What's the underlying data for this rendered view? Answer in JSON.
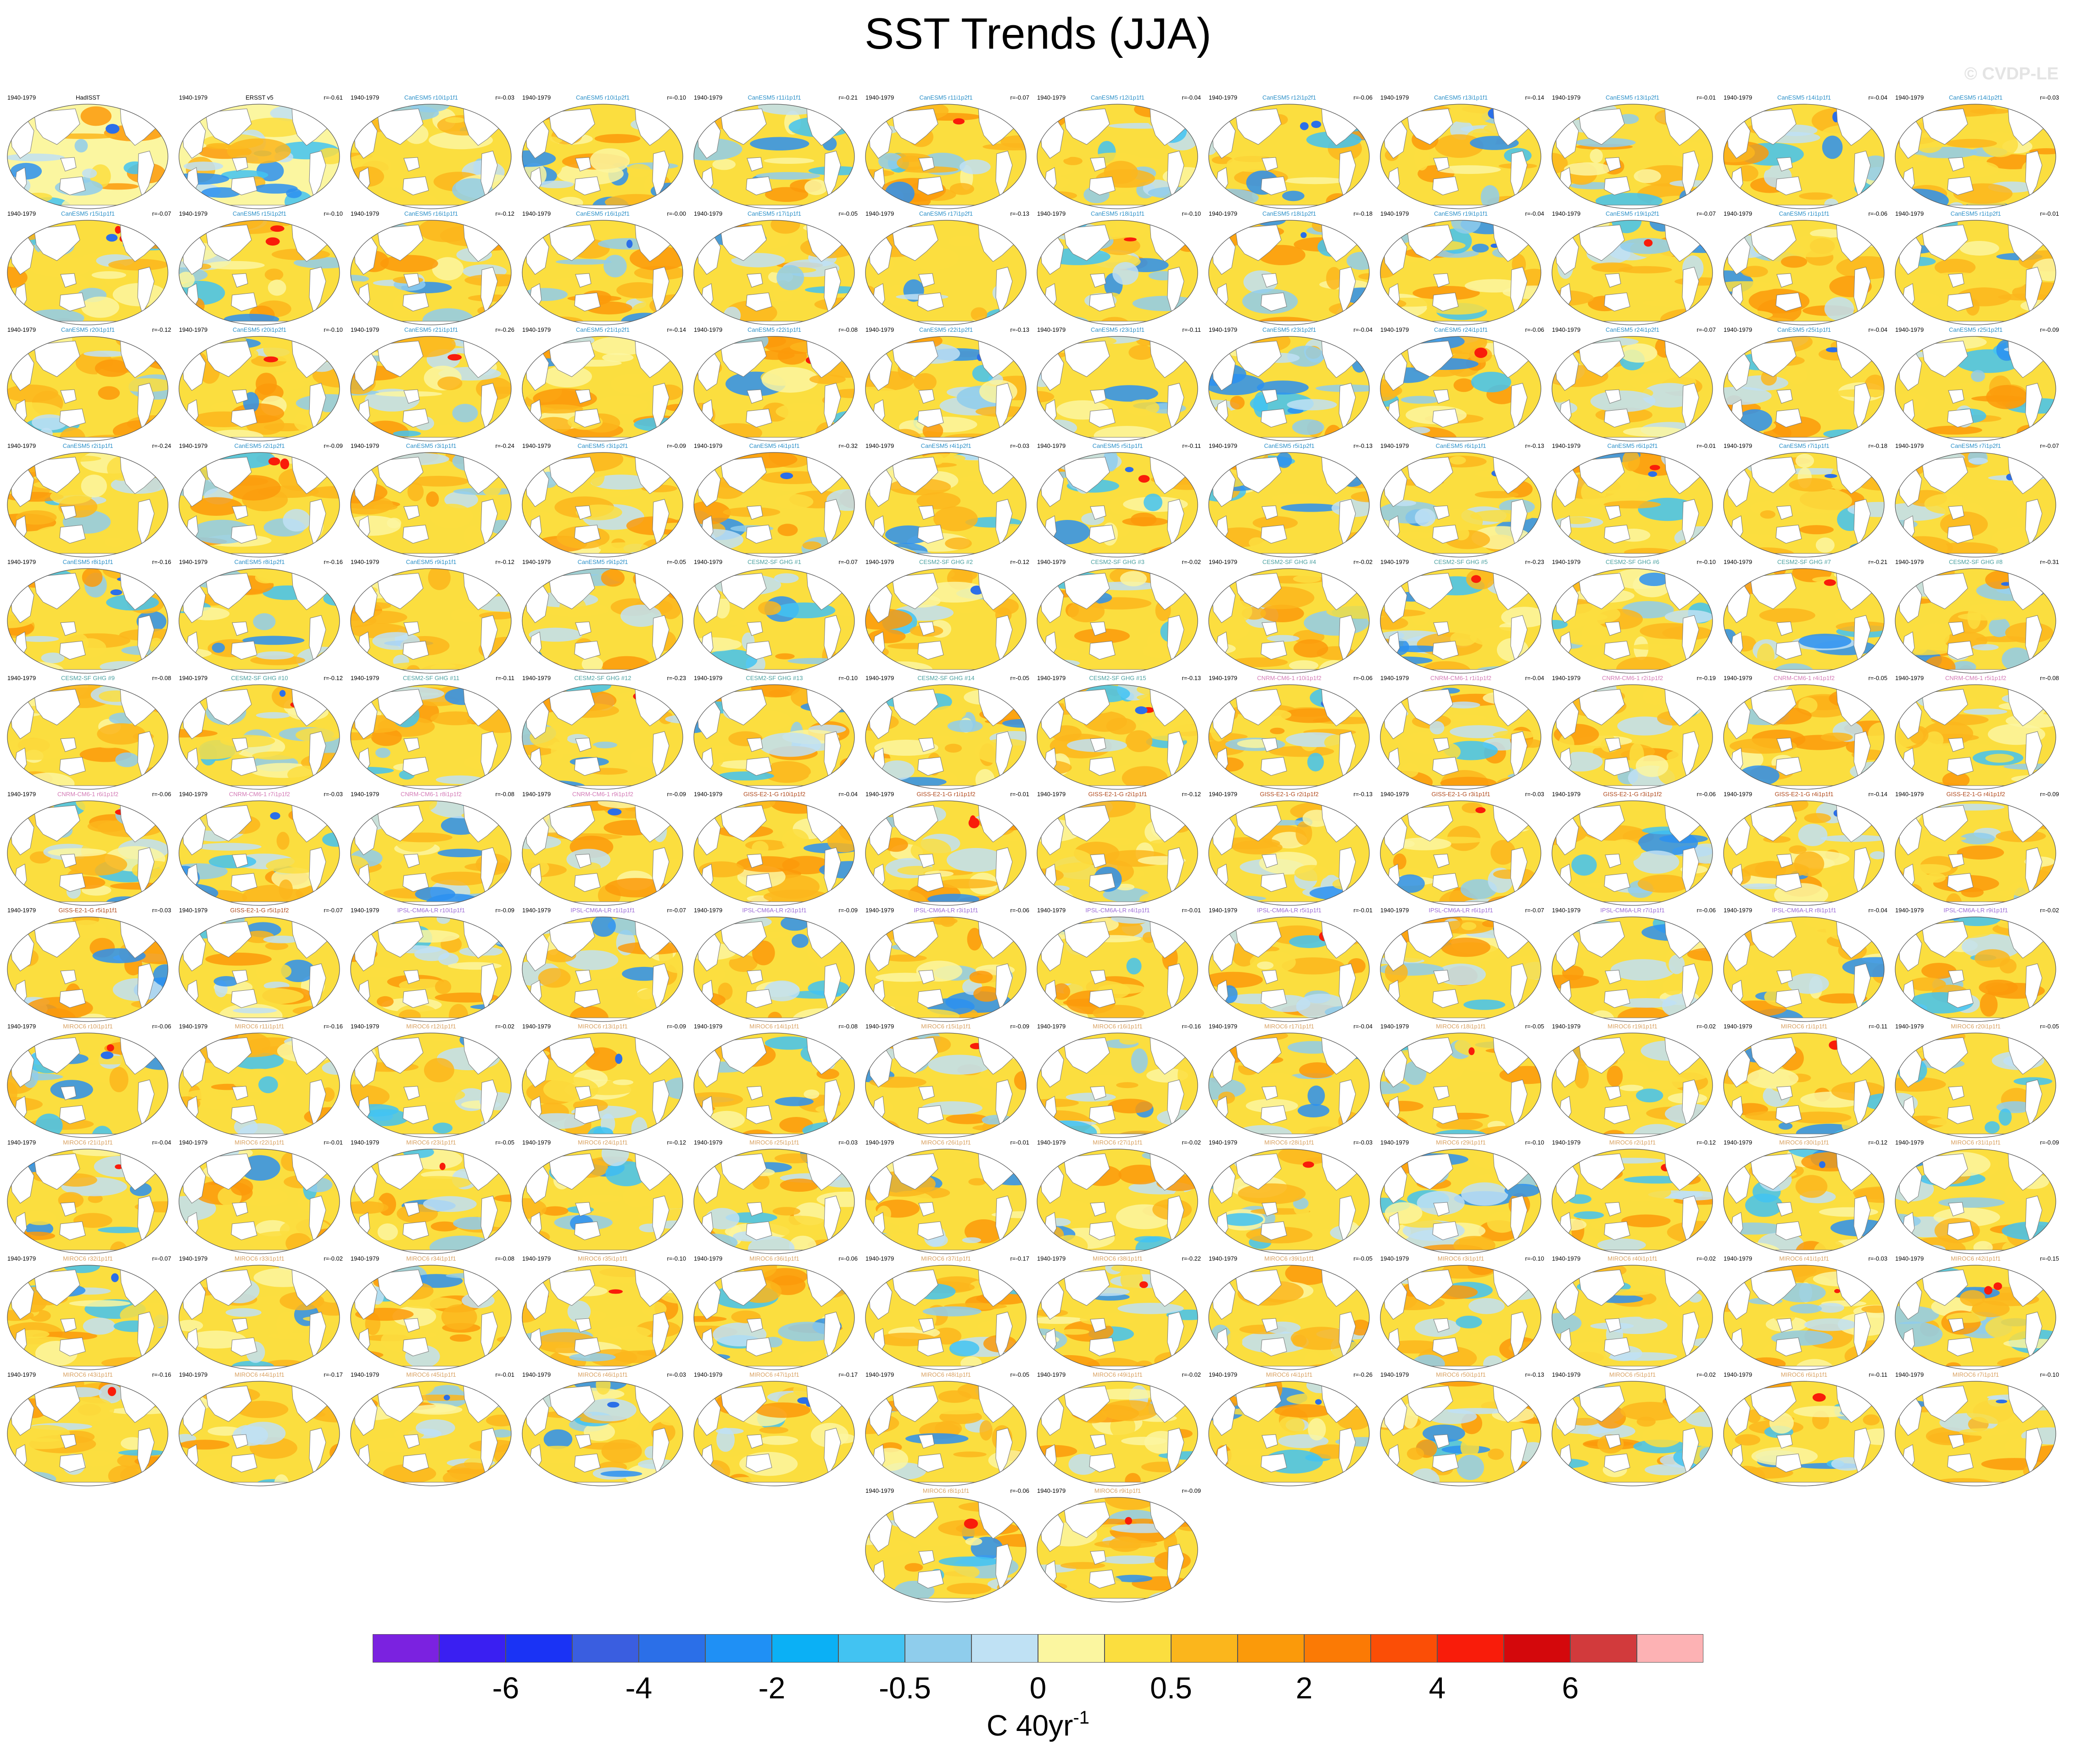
{
  "title": "SST Trends (JJA)",
  "watermark": "© CVDP-LE",
  "period": "1940-1979",
  "model_colors": {
    "obs": "#000000",
    "CanESM5": "#2a8fc8",
    "CESM2-SF GHG": "#4aa0a0",
    "CNRM-CM6-1": "#d37ab6",
    "GISS-E2-1-G": "#b04a1e",
    "IPSL-CM6A-LR": "#9a6ad6",
    "MIROC6": "#d8a060"
  },
  "panels": [
    {
      "name": "HadISST",
      "model": "obs",
      "r": ""
    },
    {
      "name": "ERSST v5",
      "model": "obs",
      "r": "r=-0.61"
    },
    {
      "name": "CanESM5 r10i1p1f1",
      "model": "CanESM5",
      "r": "r=-0.03"
    },
    {
      "name": "CanESM5 r10i1p2f1",
      "model": "CanESM5",
      "r": "r=-0.10"
    },
    {
      "name": "CanESM5 r11i1p1f1",
      "model": "CanESM5",
      "r": "r=-0.21"
    },
    {
      "name": "CanESM5 r11i1p2f1",
      "model": "CanESM5",
      "r": "r=-0.07"
    },
    {
      "name": "CanESM5 r12i1p1f1",
      "model": "CanESM5",
      "r": "r=-0.04"
    },
    {
      "name": "CanESM5 r12i1p2f1",
      "model": "CanESM5",
      "r": "r=-0.06"
    },
    {
      "name": "CanESM5 r13i1p1f1",
      "model": "CanESM5",
      "r": "r=-0.14"
    },
    {
      "name": "CanESM5 r13i1p2f1",
      "model": "CanESM5",
      "r": "r=-0.01"
    },
    {
      "name": "CanESM5 r14i1p1f1",
      "model": "CanESM5",
      "r": "r=-0.04"
    },
    {
      "name": "CanESM5 r14i1p2f1",
      "model": "CanESM5",
      "r": "r=-0.03"
    },
    {
      "name": "CanESM5 r15i1p1f1",
      "model": "CanESM5",
      "r": "r=-0.07"
    },
    {
      "name": "CanESM5 r15i1p2f1",
      "model": "CanESM5",
      "r": "r=-0.10"
    },
    {
      "name": "CanESM5 r16i1p1f1",
      "model": "CanESM5",
      "r": "r=-0.12"
    },
    {
      "name": "CanESM5 r16i1p2f1",
      "model": "CanESM5",
      "r": "r=-0.00"
    },
    {
      "name": "CanESM5 r17i1p1f1",
      "model": "CanESM5",
      "r": "r=-0.05"
    },
    {
      "name": "CanESM5 r17i1p2f1",
      "model": "CanESM5",
      "r": "r=-0.13"
    },
    {
      "name": "CanESM5 r18i1p1f1",
      "model": "CanESM5",
      "r": "r=-0.10"
    },
    {
      "name": "CanESM5 r18i1p2f1",
      "model": "CanESM5",
      "r": "r=-0.18"
    },
    {
      "name": "CanESM5 r19i1p1f1",
      "model": "CanESM5",
      "r": "r=-0.04"
    },
    {
      "name": "CanESM5 r19i1p2f1",
      "model": "CanESM5",
      "r": "r=-0.07"
    },
    {
      "name": "CanESM5 r1i1p1f1",
      "model": "CanESM5",
      "r": "r=-0.06"
    },
    {
      "name": "CanESM5 r1i1p2f1",
      "model": "CanESM5",
      "r": "r=-0.01"
    },
    {
      "name": "CanESM5 r20i1p1f1",
      "model": "CanESM5",
      "r": "r=-0.12"
    },
    {
      "name": "CanESM5 r20i1p2f1",
      "model": "CanESM5",
      "r": "r=-0.10"
    },
    {
      "name": "CanESM5 r21i1p1f1",
      "model": "CanESM5",
      "r": "r=-0.26"
    },
    {
      "name": "CanESM5 r21i1p2f1",
      "model": "CanESM5",
      "r": "r=-0.14"
    },
    {
      "name": "CanESM5 r22i1p1f1",
      "model": "CanESM5",
      "r": "r=-0.08"
    },
    {
      "name": "CanESM5 r22i1p2f1",
      "model": "CanESM5",
      "r": "r=-0.13"
    },
    {
      "name": "CanESM5 r23i1p1f1",
      "model": "CanESM5",
      "r": "r=-0.11"
    },
    {
      "name": "CanESM5 r23i1p2f1",
      "model": "CanESM5",
      "r": "r=-0.04"
    },
    {
      "name": "CanESM5 r24i1p1f1",
      "model": "CanESM5",
      "r": "r=-0.06"
    },
    {
      "name": "CanESM5 r24i1p2f1",
      "model": "CanESM5",
      "r": "r=-0.07"
    },
    {
      "name": "CanESM5 r25i1p1f1",
      "model": "CanESM5",
      "r": "r=-0.04"
    },
    {
      "name": "CanESM5 r25i1p2f1",
      "model": "CanESM5",
      "r": "r=-0.09"
    },
    {
      "name": "CanESM5 r2i1p1f1",
      "model": "CanESM5",
      "r": "r=-0.24"
    },
    {
      "name": "CanESM5 r2i1p2f1",
      "model": "CanESM5",
      "r": "r=-0.09"
    },
    {
      "name": "CanESM5 r3i1p1f1",
      "model": "CanESM5",
      "r": "r=-0.24"
    },
    {
      "name": "CanESM5 r3i1p2f1",
      "model": "CanESM5",
      "r": "r=-0.09"
    },
    {
      "name": "CanESM5 r4i1p1f1",
      "model": "CanESM5",
      "r": "r=-0.32"
    },
    {
      "name": "CanESM5 r4i1p2f1",
      "model": "CanESM5",
      "r": "r=-0.03"
    },
    {
      "name": "CanESM5 r5i1p1f1",
      "model": "CanESM5",
      "r": "r=-0.11"
    },
    {
      "name": "CanESM5 r5i1p2f1",
      "model": "CanESM5",
      "r": "r=-0.13"
    },
    {
      "name": "CanESM5 r6i1p1f1",
      "model": "CanESM5",
      "r": "r=-0.13"
    },
    {
      "name": "CanESM5 r6i1p2f1",
      "model": "CanESM5",
      "r": "r=-0.01"
    },
    {
      "name": "CanESM5 r7i1p1f1",
      "model": "CanESM5",
      "r": "r=-0.18"
    },
    {
      "name": "CanESM5 r7i1p2f1",
      "model": "CanESM5",
      "r": "r=-0.07"
    },
    {
      "name": "CanESM5 r8i1p1f1",
      "model": "CanESM5",
      "r": "r=-0.16"
    },
    {
      "name": "CanESM5 r8i1p2f1",
      "model": "CanESM5",
      "r": "r=-0.16"
    },
    {
      "name": "CanESM5 r9i1p1f1",
      "model": "CanESM5",
      "r": "r=-0.12"
    },
    {
      "name": "CanESM5 r9i1p2f1",
      "model": "CanESM5",
      "r": "r=-0.05"
    },
    {
      "name": "CESM2-SF GHG #1",
      "model": "CESM2-SF GHG",
      "r": "r=-0.07"
    },
    {
      "name": "CESM2-SF GHG #2",
      "model": "CESM2-SF GHG",
      "r": "r=-0.12"
    },
    {
      "name": "CESM2-SF GHG #3",
      "model": "CESM2-SF GHG",
      "r": "r=-0.02"
    },
    {
      "name": "CESM2-SF GHG #4",
      "model": "CESM2-SF GHG",
      "r": "r=-0.02"
    },
    {
      "name": "CESM2-SF GHG #5",
      "model": "CESM2-SF GHG",
      "r": "r=-0.23"
    },
    {
      "name": "CESM2-SF GHG #6",
      "model": "CESM2-SF GHG",
      "r": "r=-0.10"
    },
    {
      "name": "CESM2-SF GHG #7",
      "model": "CESM2-SF GHG",
      "r": "r=-0.21"
    },
    {
      "name": "CESM2-SF GHG #8",
      "model": "CESM2-SF GHG",
      "r": "r=-0.31"
    },
    {
      "name": "CESM2-SF GHG #9",
      "model": "CESM2-SF GHG",
      "r": "r=-0.08"
    },
    {
      "name": "CESM2-SF GHG #10",
      "model": "CESM2-SF GHG",
      "r": "r=-0.12"
    },
    {
      "name": "CESM2-SF GHG #11",
      "model": "CESM2-SF GHG",
      "r": "r=-0.11"
    },
    {
      "name": "CESM2-SF GHG #12",
      "model": "CESM2-SF GHG",
      "r": "r=-0.23"
    },
    {
      "name": "CESM2-SF GHG #13",
      "model": "CESM2-SF GHG",
      "r": "r=-0.10"
    },
    {
      "name": "CESM2-SF GHG #14",
      "model": "CESM2-SF GHG",
      "r": "r=-0.05"
    },
    {
      "name": "CESM2-SF GHG #15",
      "model": "CESM2-SF GHG",
      "r": "r=-0.13"
    },
    {
      "name": "CNRM-CM6-1 r10i1p1f2",
      "model": "CNRM-CM6-1",
      "r": "r=-0.06"
    },
    {
      "name": "CNRM-CM6-1 r1i1p1f2",
      "model": "CNRM-CM6-1",
      "r": "r=-0.04"
    },
    {
      "name": "CNRM-CM6-1 r2i1p1f2",
      "model": "CNRM-CM6-1",
      "r": "r=-0.19"
    },
    {
      "name": "CNRM-CM6-1 r4i1p1f2",
      "model": "CNRM-CM6-1",
      "r": "r=-0.05"
    },
    {
      "name": "CNRM-CM6-1 r5i1p1f2",
      "model": "CNRM-CM6-1",
      "r": "r=-0.08"
    },
    {
      "name": "CNRM-CM6-1 r6i1p1f2",
      "model": "CNRM-CM6-1",
      "r": "r=-0.06"
    },
    {
      "name": "CNRM-CM6-1 r7i1p1f2",
      "model": "CNRM-CM6-1",
      "r": "r=-0.03"
    },
    {
      "name": "CNRM-CM6-1 r8i1p1f2",
      "model": "CNRM-CM6-1",
      "r": "r=-0.08"
    },
    {
      "name": "CNRM-CM6-1 r9i1p1f2",
      "model": "CNRM-CM6-1",
      "r": "r=-0.09"
    },
    {
      "name": "GISS-E2-1-G r10i1p1f2",
      "model": "GISS-E2-1-G",
      "r": "r=-0.04"
    },
    {
      "name": "GISS-E2-1-G r1i1p1f2",
      "model": "GISS-E2-1-G",
      "r": "r=-0.01"
    },
    {
      "name": "GISS-E2-1-G r2i1p1f1",
      "model": "GISS-E2-1-G",
      "r": "r=-0.12"
    },
    {
      "name": "GISS-E2-1-G r2i1p1f2",
      "model": "GISS-E2-1-G",
      "r": "r=-0.13"
    },
    {
      "name": "GISS-E2-1-G r3i1p1f1",
      "model": "GISS-E2-1-G",
      "r": "r=-0.03"
    },
    {
      "name": "GISS-E2-1-G r3i1p1f2",
      "model": "GISS-E2-1-G",
      "r": "r=-0.06"
    },
    {
      "name": "GISS-E2-1-G r4i1p1f1",
      "model": "GISS-E2-1-G",
      "r": "r=-0.14"
    },
    {
      "name": "GISS-E2-1-G r4i1p1f2",
      "model": "GISS-E2-1-G",
      "r": "r=-0.09"
    },
    {
      "name": "GISS-E2-1-G r5i1p1f1",
      "model": "GISS-E2-1-G",
      "r": "r=-0.03"
    },
    {
      "name": "GISS-E2-1-G r5i1p1f2",
      "model": "GISS-E2-1-G",
      "r": "r=-0.07"
    },
    {
      "name": "IPSL-CM6A-LR r10i1p1f1",
      "model": "IPSL-CM6A-LR",
      "r": "r=-0.09"
    },
    {
      "name": "IPSL-CM6A-LR r1i1p1f1",
      "model": "IPSL-CM6A-LR",
      "r": "r=-0.07"
    },
    {
      "name": "IPSL-CM6A-LR r2i1p1f1",
      "model": "IPSL-CM6A-LR",
      "r": "r=-0.09"
    },
    {
      "name": "IPSL-CM6A-LR r3i1p1f1",
      "model": "IPSL-CM6A-LR",
      "r": "r=-0.06"
    },
    {
      "name": "IPSL-CM6A-LR r4i1p1f1",
      "model": "IPSL-CM6A-LR",
      "r": "r=-0.01"
    },
    {
      "name": "IPSL-CM6A-LR r5i1p1f1",
      "model": "IPSL-CM6A-LR",
      "r": "r=-0.01"
    },
    {
      "name": "IPSL-CM6A-LR r6i1p1f1",
      "model": "IPSL-CM6A-LR",
      "r": "r=-0.07"
    },
    {
      "name": "IPSL-CM6A-LR r7i1p1f1",
      "model": "IPSL-CM6A-LR",
      "r": "r=-0.06"
    },
    {
      "name": "IPSL-CM6A-LR r8i1p1f1",
      "model": "IPSL-CM6A-LR",
      "r": "r=-0.04"
    },
    {
      "name": "IPSL-CM6A-LR r9i1p1f1",
      "model": "IPSL-CM6A-LR",
      "r": "r=-0.02"
    },
    {
      "name": "MIROC6 r10i1p1f1",
      "model": "MIROC6",
      "r": "r=-0.06"
    },
    {
      "name": "MIROC6 r11i1p1f1",
      "model": "MIROC6",
      "r": "r=-0.16"
    },
    {
      "name": "MIROC6 r12i1p1f1",
      "model": "MIROC6",
      "r": "r=-0.02"
    },
    {
      "name": "MIROC6 r13i1p1f1",
      "model": "MIROC6",
      "r": "r=-0.09"
    },
    {
      "name": "MIROC6 r14i1p1f1",
      "model": "MIROC6",
      "r": "r=-0.08"
    },
    {
      "name": "MIROC6 r15i1p1f1",
      "model": "MIROC6",
      "r": "r=-0.09"
    },
    {
      "name": "MIROC6 r16i1p1f1",
      "model": "MIROC6",
      "r": "r=-0.16"
    },
    {
      "name": "MIROC6 r17i1p1f1",
      "model": "MIROC6",
      "r": "r=-0.04"
    },
    {
      "name": "MIROC6 r18i1p1f1",
      "model": "MIROC6",
      "r": "r=-0.05"
    },
    {
      "name": "MIROC6 r19i1p1f1",
      "model": "MIROC6",
      "r": "r=-0.02"
    },
    {
      "name": "MIROC6 r1i1p1f1",
      "model": "MIROC6",
      "r": "r=-0.11"
    },
    {
      "name": "MIROC6 r20i1p1f1",
      "model": "MIROC6",
      "r": "r=-0.05"
    },
    {
      "name": "MIROC6 r21i1p1f1",
      "model": "MIROC6",
      "r": "r=-0.04"
    },
    {
      "name": "MIROC6 r22i1p1f1",
      "model": "MIROC6",
      "r": "r=-0.01"
    },
    {
      "name": "MIROC6 r23i1p1f1",
      "model": "MIROC6",
      "r": "r=-0.05"
    },
    {
      "name": "MIROC6 r24i1p1f1",
      "model": "MIROC6",
      "r": "r=-0.12"
    },
    {
      "name": "MIROC6 r25i1p1f1",
      "model": "MIROC6",
      "r": "r=-0.03"
    },
    {
      "name": "MIROC6 r26i1p1f1",
      "model": "MIROC6",
      "r": "r=-0.01"
    },
    {
      "name": "MIROC6 r27i1p1f1",
      "model": "MIROC6",
      "r": "r=-0.02"
    },
    {
      "name": "MIROC6 r28i1p1f1",
      "model": "MIROC6",
      "r": "r=-0.03"
    },
    {
      "name": "MIROC6 r29i1p1f1",
      "model": "MIROC6",
      "r": "r=-0.10"
    },
    {
      "name": "MIROC6 r2i1p1f1",
      "model": "MIROC6",
      "r": "r=-0.12"
    },
    {
      "name": "MIROC6 r30i1p1f1",
      "model": "MIROC6",
      "r": "r=-0.12"
    },
    {
      "name": "MIROC6 r31i1p1f1",
      "model": "MIROC6",
      "r": "r=-0.09"
    },
    {
      "name": "MIROC6 r32i1p1f1",
      "model": "MIROC6",
      "r": "r=-0.07"
    },
    {
      "name": "MIROC6 r33i1p1f1",
      "model": "MIROC6",
      "r": "r=-0.02"
    },
    {
      "name": "MIROC6 r34i1p1f1",
      "model": "MIROC6",
      "r": "r=-0.08"
    },
    {
      "name": "MIROC6 r35i1p1f1",
      "model": "MIROC6",
      "r": "r=-0.10"
    },
    {
      "name": "MIROC6 r36i1p1f1",
      "model": "MIROC6",
      "r": "r=-0.06"
    },
    {
      "name": "MIROC6 r37i1p1f1",
      "model": "MIROC6",
      "r": "r=-0.17"
    },
    {
      "name": "MIROC6 r38i1p1f1",
      "model": "MIROC6",
      "r": "r=-0.22"
    },
    {
      "name": "MIROC6 r39i1p1f1",
      "model": "MIROC6",
      "r": "r=-0.05"
    },
    {
      "name": "MIROC6 r3i1p1f1",
      "model": "MIROC6",
      "r": "r=-0.10"
    },
    {
      "name": "MIROC6 r40i1p1f1",
      "model": "MIROC6",
      "r": "r=-0.02"
    },
    {
      "name": "MIROC6 r41i1p1f1",
      "model": "MIROC6",
      "r": "r=-0.03"
    },
    {
      "name": "MIROC6 r42i1p1f1",
      "model": "MIROC6",
      "r": "r=-0.15"
    },
    {
      "name": "MIROC6 r43i1p1f1",
      "model": "MIROC6",
      "r": "r=-0.16"
    },
    {
      "name": "MIROC6 r44i1p1f1",
      "model": "MIROC6",
      "r": "r=-0.17"
    },
    {
      "name": "MIROC6 r45i1p1f1",
      "model": "MIROC6",
      "r": "r=-0.01"
    },
    {
      "name": "MIROC6 r46i1p1f1",
      "model": "MIROC6",
      "r": "r=-0.03"
    },
    {
      "name": "MIROC6 r47i1p1f1",
      "model": "MIROC6",
      "r": "r=-0.17"
    },
    {
      "name": "MIROC6 r48i1p1f1",
      "model": "MIROC6",
      "r": "r=-0.05"
    },
    {
      "name": "MIROC6 r49i1p1f1",
      "model": "MIROC6",
      "r": "r=-0.02"
    },
    {
      "name": "MIROC6 r4i1p1f1",
      "model": "MIROC6",
      "r": "r=-0.26"
    },
    {
      "name": "MIROC6 r50i1p1f1",
      "model": "MIROC6",
      "r": "r=-0.13"
    },
    {
      "name": "MIROC6 r5i1p1f1",
      "model": "MIROC6",
      "r": "r=-0.02"
    },
    {
      "name": "MIROC6 r6i1p1f1",
      "model": "MIROC6",
      "r": "r=-0.11"
    },
    {
      "name": "MIROC6 r7i1p1f1",
      "model": "MIROC6",
      "r": "r=-0.10"
    },
    {
      "name": "MIROC6 r8i1p1f1",
      "model": "MIROC6",
      "r": "r=-0.06"
    },
    {
      "name": "MIROC6 r9i1p1f1",
      "model": "MIROC6",
      "r": "r=-0.09"
    }
  ],
  "colorbar": {
    "colors": [
      "#7b22e0",
      "#3a1ff2",
      "#1a33f5",
      "#3a5ee0",
      "#2b6fe8",
      "#1f90f5",
      "#0bb0f5",
      "#42c3f2",
      "#8fcdec",
      "#bfe1f4",
      "#fbf6a0",
      "#fbde3f",
      "#fbb61c",
      "#fb9a0a",
      "#fb7a05",
      "#fb4e06",
      "#f91c0a",
      "#d4080c",
      "#d23a3c",
      "#fdb2b4"
    ],
    "tick_labels": [
      "-6",
      "-4",
      "-2",
      "-0.5",
      "0",
      "0.5",
      "2",
      "4",
      "6"
    ],
    "tick_boundaries": [
      2,
      4,
      6,
      8,
      10,
      12,
      14,
      16,
      18
    ],
    "units_base": "C 40yr",
    "units_sup": "-1"
  }
}
